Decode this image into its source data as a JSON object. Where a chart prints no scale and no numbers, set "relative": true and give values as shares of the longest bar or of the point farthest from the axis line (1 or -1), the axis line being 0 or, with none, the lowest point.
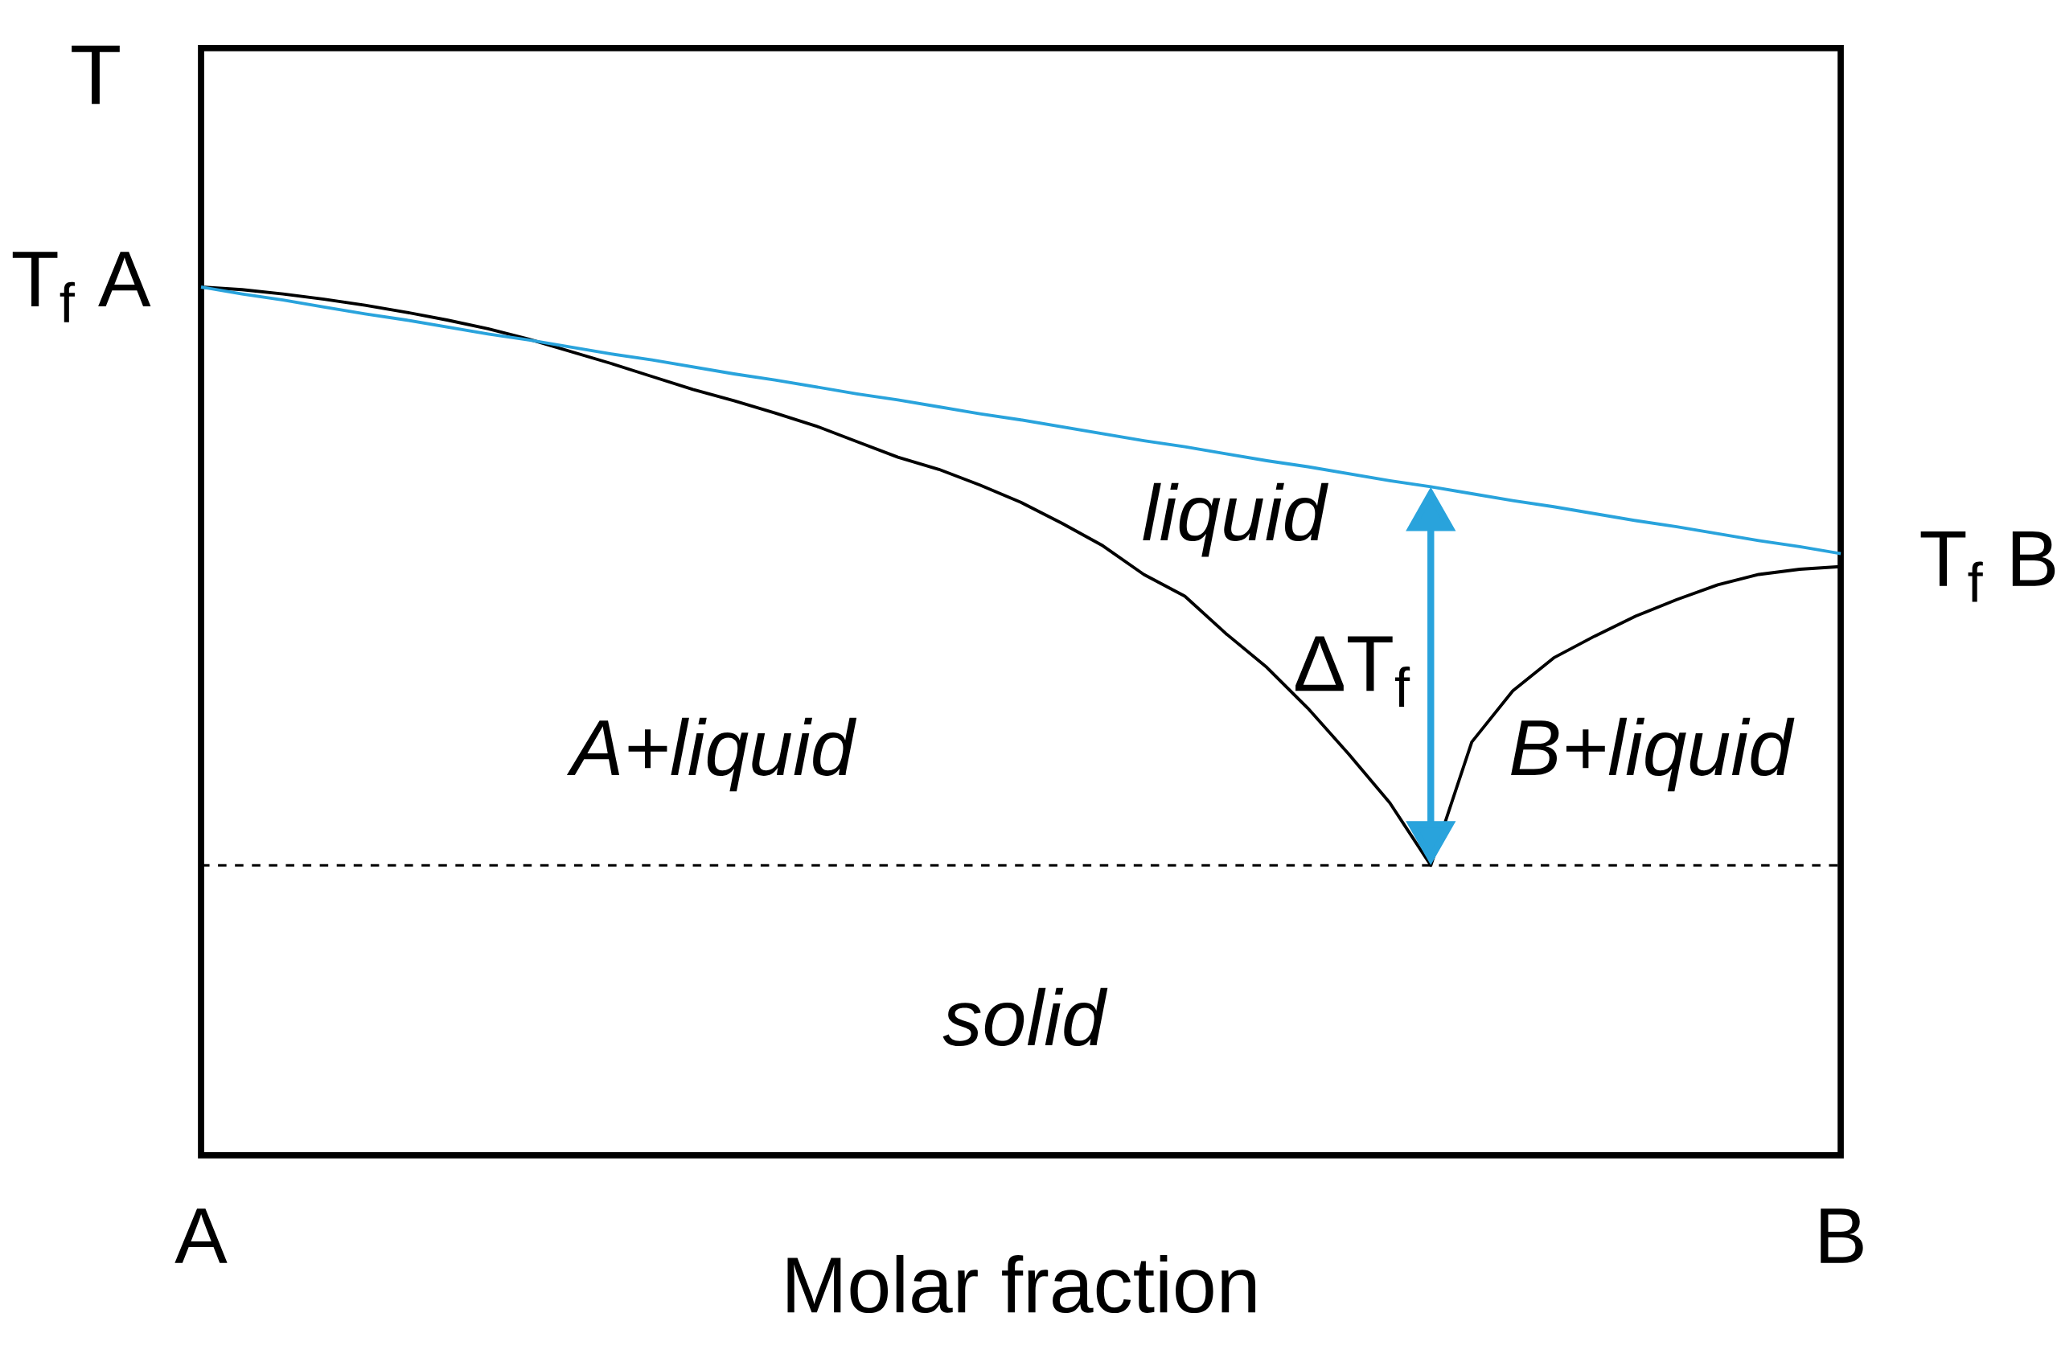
{
  "chart_data": {
    "type": "line",
    "relative": true,
    "xlabel": "Molar fraction",
    "ylabel": "T",
    "categories": [
      "A",
      null,
      null,
      null,
      null,
      null,
      null,
      null,
      null,
      null,
      null,
      null,
      null,
      null,
      null,
      null,
      null,
      null,
      null,
      null,
      null,
      null,
      null,
      null,
      null,
      null,
      null,
      null,
      null,
      null,
      null,
      null,
      null,
      null,
      null,
      null,
      null,
      null,
      null,
      null,
      "B"
    ],
    "series": [
      {
        "color": "#000000",
        "values": [
          1,
          0.997,
          0.992,
          0.986,
          0.979,
          0.971,
          0.962,
          0.952,
          0.94,
          0.926,
          0.912,
          0.897,
          0.882,
          0.869,
          0.855,
          0.84,
          0.822,
          0.804,
          0.79,
          0.772,
          0.752,
          0.728,
          0.702,
          0.669,
          0.644,
          0.601,
          0.562,
          0.515,
          0.462,
          0.406,
          0.334,
          0.476,
          0.535,
          0.573,
          0.598,
          0.621,
          0.64,
          0.657,
          0.669,
          0.675,
          0.678
        ]
      },
      {
        "color": "#29a3dc",
        "values": [
          1,
          0.992,
          0.985,
          0.977,
          0.969,
          0.962,
          0.954,
          0.946,
          0.939,
          0.931,
          0.923,
          0.916,
          0.908,
          0.9,
          0.893,
          0.885,
          0.877,
          0.87,
          0.862,
          0.854,
          0.847,
          0.839,
          0.831,
          0.823,
          0.816,
          0.808,
          0.8,
          0.793,
          0.785,
          0.777,
          0.77,
          0.762,
          0.754,
          0.747,
          0.739,
          0.731,
          0.724,
          0.716,
          0.708,
          0.701,
          0.693
        ]
      }
    ],
    "ref_lines": [
      {
        "axis": "y",
        "value": 0.334,
        "color": "#000000",
        "line_style": "dashed"
      }
    ],
    "annotations": [
      "liquid",
      "A+liquid",
      "B+liquid",
      "solid",
      "ΔT$_{f}$",
      {
        "text": "T$_{f}$ A",
        "x": "A",
        "y": 1
      },
      {
        "text": "T$_{f}$ B",
        "x": "B",
        "y": 0.678
      }
    ]
  }
}
